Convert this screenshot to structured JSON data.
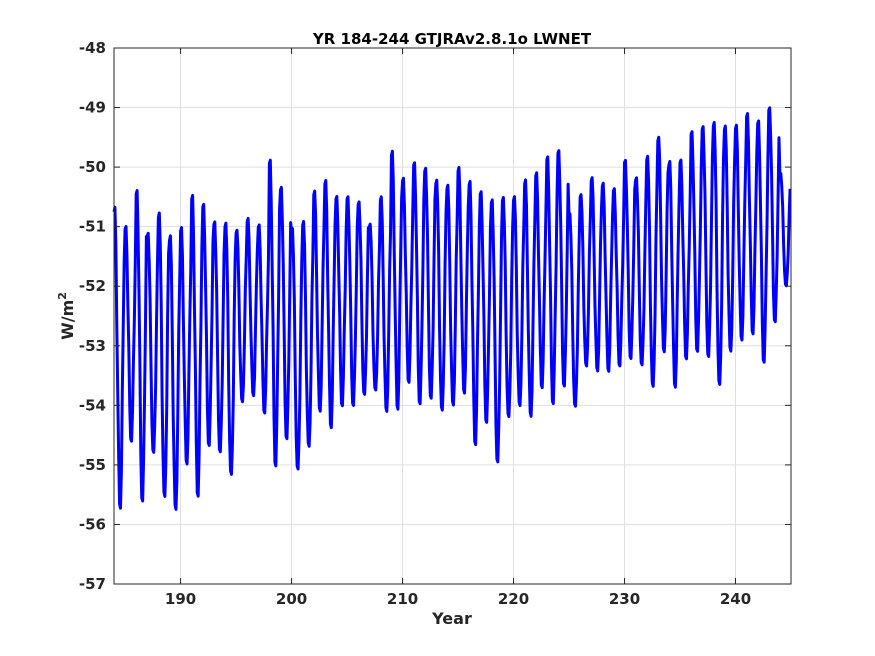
{
  "chart_data": {
    "type": "line",
    "title": "YR 184-244 GTJRAv2.8.1o LWNET",
    "xlabel": "Year",
    "ylabel": "W/m",
    "ylabel_superscript": "2",
    "xlim": [
      184,
      245
    ],
    "ylim": [
      -57,
      -48
    ],
    "xticks": [
      "190",
      "200",
      "210",
      "220",
      "230",
      "240"
    ],
    "xtick_values": [
      190,
      200,
      210,
      220,
      230,
      240
    ],
    "yticks": [
      "-48",
      "-49",
      "-50",
      "-51",
      "-52",
      "-53",
      "-54",
      "-55",
      "-56",
      "-57"
    ],
    "ytick_values": [
      -48,
      -49,
      -50,
      -51,
      -52,
      -53,
      -54,
      -55,
      -56,
      -57
    ],
    "grid": true,
    "series": [
      {
        "color": "#0000ff",
        "samples_per_year": 12,
        "x_start": 184,
        "annual_max": [
          -50.4,
          -50.8,
          -50.1,
          -50.9,
          -50.5,
          -50.9,
          -50.8,
          -50.2,
          -50.4,
          -50.7,
          -50.7,
          -50.9,
          -50.7,
          -50.8,
          -49.6,
          -50.1,
          -50.8,
          -50.7,
          -50.2,
          -50.0,
          -50.3,
          -50.3,
          -50.4,
          -50.8,
          -50.3,
          -49.5,
          -50.0,
          -49.7,
          -49.8,
          -50.0,
          -50.1,
          -49.8,
          -50.0,
          -50.2,
          -50.3,
          -50.3,
          -50.3,
          -50.0,
          -49.9,
          -49.6,
          -49.5,
          -50.6,
          -50.3,
          -50.0,
          -50.1,
          -50.2,
          -49.7,
          -50.0,
          -49.6,
          -49.3,
          -49.7,
          -49.7,
          -49.2,
          -49.1,
          -49.0,
          -49.1,
          -49.1,
          -48.9,
          -49.0,
          -48.8,
          -50.0
        ],
        "annual_min": [
          -56.0,
          -54.8,
          -55.9,
          -55.0,
          -55.8,
          -56.0,
          -55.2,
          -55.8,
          -54.9,
          -55.0,
          -55.4,
          -54.1,
          -54.0,
          -54.3,
          -55.3,
          -54.8,
          -55.3,
          -54.9,
          -54.3,
          -54.6,
          -54.2,
          -54.2,
          -54.0,
          -53.9,
          -54.3,
          -54.3,
          -53.8,
          -54.2,
          -54.1,
          -54.3,
          -54.2,
          -54.0,
          -54.9,
          -54.5,
          -55.2,
          -54.4,
          -54.2,
          -54.4,
          -53.9,
          -54.2,
          -53.9,
          -54.2,
          -53.5,
          -53.6,
          -53.6,
          -53.5,
          -53.4,
          -53.5,
          -53.9,
          -53.3,
          -53.9,
          -53.4,
          -53.3,
          -53.4,
          -53.9,
          -53.3,
          -53.1,
          -53.0,
          -53.5,
          -52.8,
          -52.1
        ]
      }
    ]
  }
}
